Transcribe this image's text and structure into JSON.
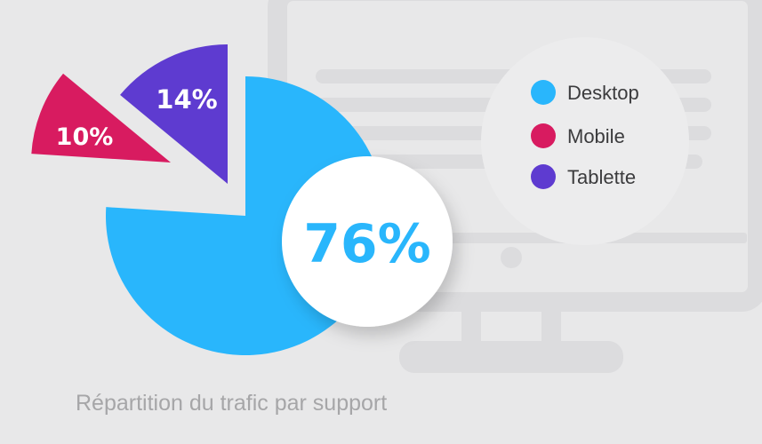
{
  "chart_data": {
    "type": "pie",
    "categories": [
      "Desktop",
      "Mobile",
      "Tablette"
    ],
    "values": [
      76,
      10,
      14
    ],
    "value_labels": [
      "76%",
      "10%",
      "14%"
    ],
    "colors": [
      "#29b6fc",
      "#d81b60",
      "#5e3bd0"
    ],
    "legend": "right",
    "exploded": [
      "Mobile",
      "Tablette"
    ]
  },
  "legend": {
    "items": [
      {
        "label": "Desktop",
        "color": "#29b6fc"
      },
      {
        "label": "Mobile",
        "color": "#d81b60"
      },
      {
        "label": "Tablette",
        "color": "#5e3bd0"
      }
    ]
  },
  "caption": "Répartition du trafic par support",
  "background_icon": "desktop-monitor-icon"
}
